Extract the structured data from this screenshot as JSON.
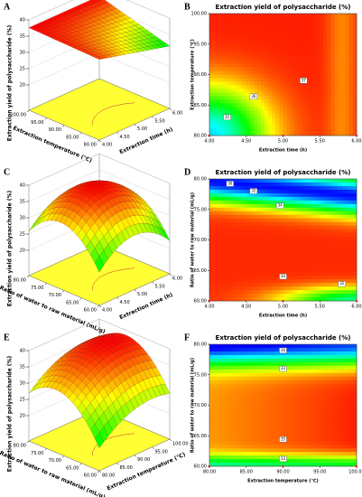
{
  "chart_data": [
    {
      "type": "surface3d",
      "label": "A",
      "zlabel": "Extraction yield of polysaccharide (%)",
      "xlabel": "Extraction temperature (℃)",
      "ylabel": "Extraction time (h)",
      "zlim": [
        20,
        40
      ],
      "zticks": [
        20,
        25,
        30,
        35,
        40
      ],
      "xlim": [
        80,
        100
      ],
      "xticks": [
        {
          "value": 80,
          "label": "80.00"
        },
        {
          "value": 85,
          "label": "85.00"
        },
        {
          "value": 90,
          "label": "90.00"
        },
        {
          "value": 95,
          "label": "95.00"
        },
        {
          "value": 100,
          "label": "100.00"
        }
      ],
      "ylim": [
        4,
        6
      ],
      "yticks": [
        {
          "value": 4,
          "label": "4.00"
        },
        {
          "value": 4.5,
          "label": "4.50"
        },
        {
          "value": 5,
          "label": "5.00"
        },
        {
          "value": 5.5,
          "label": "5.50"
        },
        {
          "value": 6,
          "label": "6.00"
        }
      ],
      "colormap": [
        "#0000ff",
        "#00ffff",
        "#00ff00",
        "#ffff00",
        "#ff0000"
      ],
      "floor_color": "#ffff33"
    },
    {
      "type": "contour",
      "label": "B",
      "title": "Extraction yield of polysaccharide (%)",
      "xlabel": "Extraction time (h)",
      "ylabel": "Extraction temperature (℃)",
      "xlim": [
        4,
        6
      ],
      "xticks": [
        {
          "value": 4,
          "label": "4.00"
        },
        {
          "value": 4.5,
          "label": "4.50"
        },
        {
          "value": 5,
          "label": "5.00"
        },
        {
          "value": 5.5,
          "label": "5.50"
        },
        {
          "value": 6,
          "label": "6.00"
        }
      ],
      "ylim": [
        80,
        100
      ],
      "yticks": [
        {
          "value": 80,
          "label": "80.00"
        },
        {
          "value": 85,
          "label": "85.00"
        },
        {
          "value": 90,
          "label": "90.00"
        },
        {
          "value": 95,
          "label": "95.00"
        },
        {
          "value": 100,
          "label": "100.00"
        }
      ],
      "contour_labels": [
        35,
        36,
        37
      ],
      "colormap": [
        "#0000ff",
        "#00ffff",
        "#00ff00",
        "#ffff00",
        "#ff0000"
      ]
    },
    {
      "type": "surface3d",
      "label": "C",
      "zlabel": "Extraction yield of polysaccharide (%)",
      "xlabel": "Ratio of water to raw material (mL/g)",
      "ylabel": "Extraction time (h)",
      "zlim": [
        20,
        40
      ],
      "zticks": [
        20,
        25,
        30,
        35,
        40
      ],
      "xlim": [
        60,
        80
      ],
      "xticks": [
        {
          "value": 60,
          "label": "60.00"
        },
        {
          "value": 65,
          "label": "65.00"
        },
        {
          "value": 70,
          "label": "70.00"
        },
        {
          "value": 75,
          "label": "75.00"
        },
        {
          "value": 80,
          "label": "80.00"
        }
      ],
      "ylim": [
        4,
        6
      ],
      "yticks": [
        {
          "value": 4,
          "label": "4.00"
        },
        {
          "value": 4.5,
          "label": "4.50"
        },
        {
          "value": 5,
          "label": "5.00"
        },
        {
          "value": 5.5,
          "label": "5.50"
        },
        {
          "value": 6,
          "label": "6.00"
        }
      ],
      "colormap": [
        "#0000ff",
        "#00ffff",
        "#00ff00",
        "#ffff00",
        "#ff0000"
      ],
      "floor_color": "#ffff33"
    },
    {
      "type": "contour",
      "label": "D",
      "title": "Extraction yield of polysaccharide (%)",
      "xlabel": "Extraction time (h)",
      "ylabel": "Ratio of water to raw material (mL/g)",
      "xlim": [
        4,
        6
      ],
      "xticks": [
        {
          "value": 4,
          "label": "4.00"
        },
        {
          "value": 4.5,
          "label": "4.50"
        },
        {
          "value": 5,
          "label": "5.00"
        },
        {
          "value": 5.5,
          "label": "5.50"
        },
        {
          "value": 6,
          "label": "6.00"
        }
      ],
      "ylim": [
        60,
        80
      ],
      "yticks": [
        {
          "value": 60,
          "label": "60.00"
        },
        {
          "value": 65,
          "label": "65.00"
        },
        {
          "value": 70,
          "label": "70.00"
        },
        {
          "value": 75,
          "label": "75.00"
        },
        {
          "value": 80,
          "label": "80.00"
        }
      ],
      "contour_labels": [
        30,
        32,
        34,
        34,
        32
      ],
      "colormap": [
        "#0000ff",
        "#00ffff",
        "#00ff00",
        "#ffff00",
        "#ff0000"
      ]
    },
    {
      "type": "surface3d",
      "label": "E",
      "zlabel": "Extraction yield of polysaccharide (%)",
      "xlabel": "Ratio of water to raw material (mL/g)",
      "ylabel": "Extraction temperature (℃)",
      "zlim": [
        20,
        40
      ],
      "zticks": [
        20,
        25,
        30,
        35,
        40
      ],
      "xlim": [
        60,
        80
      ],
      "xticks": [
        {
          "value": 60,
          "label": "60.00"
        },
        {
          "value": 65,
          "label": "65.00"
        },
        {
          "value": 70,
          "label": "70.00"
        },
        {
          "value": 75,
          "label": "75.00"
        },
        {
          "value": 80,
          "label": "80.00"
        }
      ],
      "ylim": [
        80,
        100
      ],
      "yticks": [
        {
          "value": 80,
          "label": "80.00"
        },
        {
          "value": 85,
          "label": "85.00"
        },
        {
          "value": 90,
          "label": "90.00"
        },
        {
          "value": 95,
          "label": "95.00"
        },
        {
          "value": 100,
          "label": "100.00"
        }
      ],
      "colormap": [
        "#0000ff",
        "#00ffff",
        "#00ff00",
        "#ffff00",
        "#ff0000"
      ],
      "floor_color": "#ffff33"
    },
    {
      "type": "contour",
      "label": "F",
      "title": "Extraction yield of polysaccharide (%)",
      "xlabel": "Extraction temperature (℃)",
      "ylabel": "Ratio of water to raw material (mL/g)",
      "xlim": [
        80,
        100
      ],
      "xticks": [
        {
          "value": 80,
          "label": "80.00"
        },
        {
          "value": 85,
          "label": "85.00"
        },
        {
          "value": 90,
          "label": "90.00"
        },
        {
          "value": 95,
          "label": "95.00"
        },
        {
          "value": 100,
          "label": "100.00"
        }
      ],
      "ylim": [
        60,
        80
      ],
      "yticks": [
        {
          "value": 60,
          "label": "60.00"
        },
        {
          "value": 65,
          "label": "65.00"
        },
        {
          "value": 70,
          "label": "70.00"
        },
        {
          "value": 75,
          "label": "75.00"
        },
        {
          "value": 80,
          "label": "80.00"
        }
      ],
      "contour_labels": [
        30,
        33,
        35,
        33
      ],
      "colormap": [
        "#0000ff",
        "#00ffff",
        "#00ff00",
        "#ffff00",
        "#ff0000"
      ]
    }
  ]
}
